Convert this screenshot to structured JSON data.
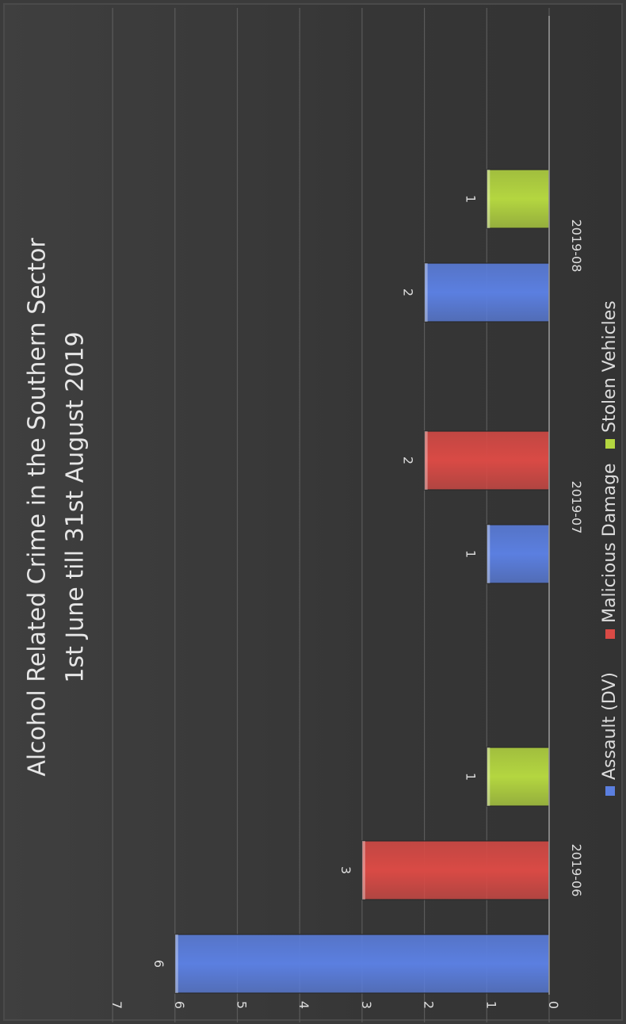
{
  "chart_data": {
    "type": "bar",
    "orientation": "rotated-90-clockwise",
    "title": "Alcohol Related Crime in the Southern Sector",
    "subtitle": "1st June till 31st August 2019",
    "xlabel": "",
    "ylabel": "",
    "ylim": [
      0,
      7
    ],
    "yticks": [
      "0",
      "1",
      "2",
      "3",
      "4",
      "5",
      "6",
      "7"
    ],
    "grid": true,
    "legend_position": "bottom",
    "categories": [
      "2019-06",
      "2019-07",
      "2019-08"
    ],
    "series": [
      {
        "name": "Assault (DV)",
        "color": "#5b7fe0",
        "values": [
          6,
          1,
          2
        ]
      },
      {
        "name": "Malicious Damage",
        "color": "#d94a45",
        "values": [
          3,
          2,
          null
        ]
      },
      {
        "name": "Stolen Vehicles",
        "color": "#b4d640",
        "values": [
          1,
          null,
          1
        ]
      }
    ],
    "data_labels": [
      {
        "series": "Assault (DV)",
        "category": "2019-06",
        "label": "6"
      },
      {
        "series": "Malicious Damage",
        "category": "2019-06",
        "label": "3"
      },
      {
        "series": "Stolen Vehicles",
        "category": "2019-06",
        "label": "1"
      },
      {
        "series": "Assault (DV)",
        "category": "2019-07",
        "label": "1"
      },
      {
        "series": "Malicious Damage",
        "category": "2019-07",
        "label": "2"
      },
      {
        "series": "Assault (DV)",
        "category": "2019-08",
        "label": "2"
      },
      {
        "series": "Stolen Vehicles",
        "category": "2019-08",
        "label": "1"
      }
    ]
  },
  "colors": {
    "background": "#3a3a3a",
    "grid": "#5a5a5a",
    "text": "#dcdcdc",
    "axis": "#9a9a9a"
  }
}
